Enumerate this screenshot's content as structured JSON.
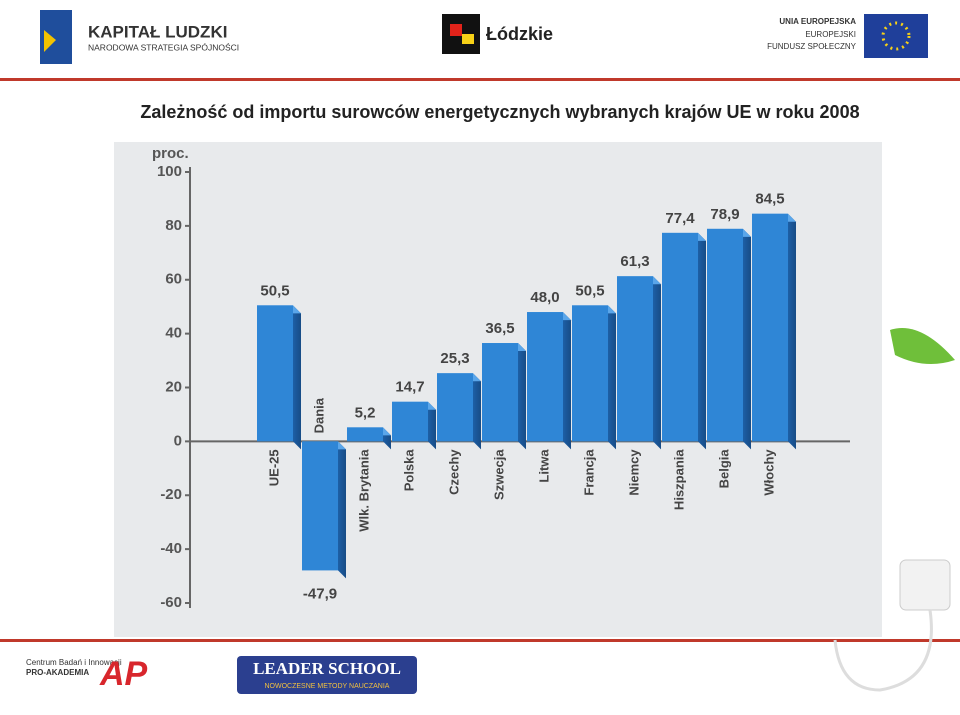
{
  "header": {
    "logo_left_title": "KAPITAŁ LUDZKI",
    "logo_left_subtitle": "NARODOWA STRATEGIA SPÓJNOŚCI",
    "logo_center": "Łódzkie",
    "logo_right_lines": [
      "UNIA EUROPEJSKA",
      "EUROPEJSKI",
      "FUNDUSZ SPOŁECZNY"
    ]
  },
  "footer": {
    "left_lines": [
      "Centrum Badań i Innowacji",
      "PRO-AKADEMIA"
    ],
    "left_mark": "AP",
    "right_title": "LEADER SCHOOL",
    "right_subtitle": "NOWOCZESNE METODY NAUCZANIA"
  },
  "chart_data": {
    "type": "bar",
    "title": "Zależność od importu surowców energetycznych wybranych krajów UE w roku 2008",
    "y_label": "proc.",
    "categories": [
      "UE-25",
      "Dania",
      "Wlk. Brytania",
      "Polska",
      "Czechy",
      "Szwecja",
      "Litwa",
      "Francja",
      "Niemcy",
      "Hiszpania",
      "Belgia",
      "Włochy"
    ],
    "values": [
      50.5,
      -47.9,
      5.2,
      14.7,
      25.3,
      36.5,
      48.0,
      50.5,
      61.3,
      77.4,
      78.9,
      84.5
    ],
    "value_labels": [
      "50,5",
      "-47,9",
      "5,2",
      "14,7",
      "25,3",
      "36,5",
      "48,0",
      "50,5",
      "61,3",
      "77,4",
      "78,9",
      "84,5"
    ],
    "color": "#2f86d6",
    "ylim": [
      -60,
      100
    ],
    "yticks": [
      -60,
      -40,
      -20,
      0,
      20,
      40,
      60,
      80,
      100
    ]
  }
}
